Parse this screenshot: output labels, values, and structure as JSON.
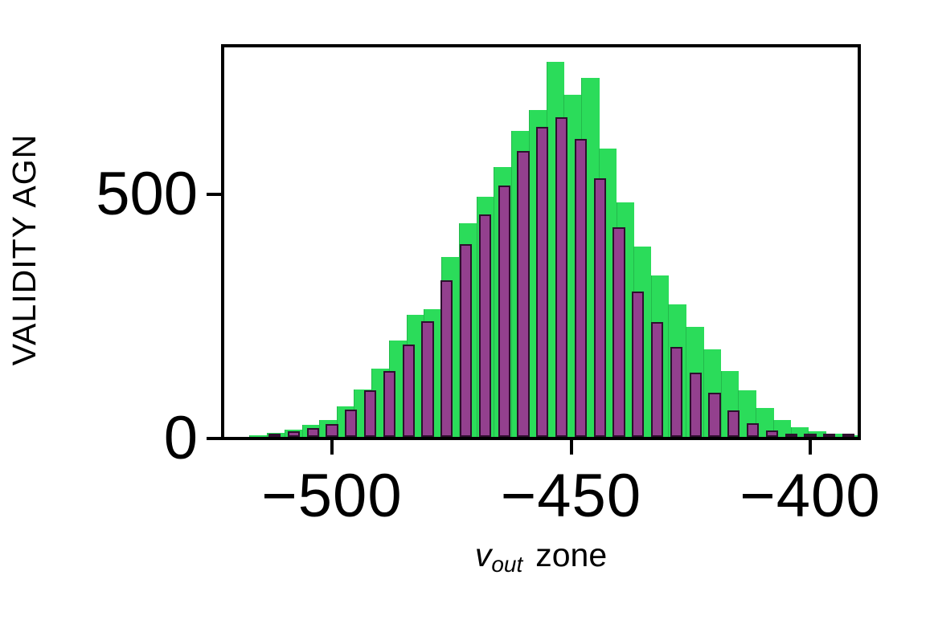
{
  "labels": {
    "ylabel": "VALIDITY AGN",
    "xlabel_var": "v",
    "xlabel_sub": "out",
    "xlabel_word": "zone"
  },
  "chart_data": {
    "type": "bar",
    "subtype": "overlaid-histograms",
    "title": "",
    "xlabel": "v_out zone",
    "ylabel": "VALIDITY AGN",
    "xlim": [
      -522.8,
      -389.5
    ],
    "ylim": [
      0,
      800
    ],
    "xticks": [
      -500,
      -450,
      -400
    ],
    "xtick_labels": [
      "−500",
      "−450",
      "−400"
    ],
    "yticks": [
      0,
      500
    ],
    "ytick_labels": [
      "0",
      "500"
    ],
    "grid": false,
    "legend": "none",
    "series": [
      {
        "name": "green-histogram",
        "color": "#2bdc5a",
        "edge_color": null,
        "bin_width": 3.65,
        "bar_width_fraction": 1.0,
        "centers": [
          -515.4,
          -511.7,
          -508.1,
          -504.4,
          -500.8,
          -497.1,
          -493.5,
          -489.8,
          -486.2,
          -482.5,
          -478.9,
          -475.2,
          -471.6,
          -467.9,
          -464.3,
          -460.6,
          -457.0,
          -453.3,
          -449.7,
          -446.0,
          -442.4,
          -438.7,
          -435.1,
          -431.4,
          -427.8,
          -424.1,
          -420.5,
          -416.8,
          -413.2,
          -409.5,
          -405.9,
          -402.2,
          -398.6,
          -394.9,
          -391.3,
          -387.6
        ],
        "values": [
          4,
          8,
          15,
          24,
          34,
          62,
          97,
          140,
          198,
          250,
          262,
          368,
          437,
          492,
          553,
          627,
          670,
          768,
          700,
          736,
          590,
          480,
          390,
          330,
          272,
          225,
          180,
          135,
          95,
          60,
          35,
          20,
          11,
          6,
          3,
          2
        ]
      },
      {
        "name": "purple-histogram",
        "color": "#93408e",
        "edge_color": "#2e0f2e",
        "bin_width": 4.0,
        "bar_width_fraction": 0.64,
        "centers": [
          -512,
          -508,
          -504,
          -500,
          -496,
          -492,
          -488,
          -484,
          -480,
          -476,
          -472,
          -468,
          -464,
          -460,
          -456,
          -452,
          -448,
          -444,
          -440,
          -436,
          -432,
          -428,
          -424,
          -420,
          -416,
          -412,
          -408,
          -404,
          -400,
          -396,
          -392
        ],
        "values": [
          6,
          11,
          18,
          27,
          56,
          95,
          135,
          190,
          237,
          320,
          395,
          455,
          515,
          585,
          635,
          655,
          610,
          530,
          430,
          297,
          235,
          184,
          132,
          90,
          55,
          28,
          13,
          6,
          3,
          2,
          1
        ]
      }
    ]
  }
}
